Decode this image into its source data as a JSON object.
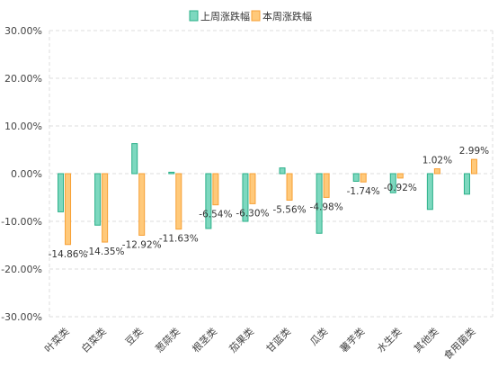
{
  "chart_data": {
    "type": "bar",
    "categories": [
      "叶菜类",
      "白菜类",
      "豆类",
      "葱蒜类",
      "根茎类",
      "茄果类",
      "甘蓝类",
      "瓜类",
      "薯芋类",
      "水生类",
      "其他类",
      "食用菌类"
    ],
    "series": [
      {
        "name": "上周涨跌幅",
        "values": [
          -8.0,
          -10.8,
          6.3,
          0.3,
          -11.5,
          -10.0,
          1.2,
          -12.5,
          -1.6,
          -4.0,
          -7.5,
          -4.3
        ],
        "color": "#7dd8bf",
        "stroke": "#2bb089"
      },
      {
        "name": "本周涨跌幅",
        "values": [
          -14.86,
          -14.35,
          -12.92,
          -11.63,
          -6.54,
          -6.3,
          -5.56,
          -4.98,
          -1.74,
          -0.92,
          1.02,
          2.99
        ],
        "labels": [
          "-14.86%",
          "-14.35%",
          "-12.92%",
          "-11.63%",
          "-6.54%",
          "-6.30%",
          "-5.56%",
          "-4.98%",
          "-1.74%",
          "-0.92%",
          "1.02%",
          "2.99%"
        ],
        "color": "#ffc97a",
        "stroke": "#f7a035"
      }
    ],
    "ylim": [
      -30,
      30
    ],
    "yticks": [
      "-30.00%",
      "-20.00%",
      "-10.00%",
      "0.00%",
      "10.00%",
      "20.00%",
      "30.00%"
    ],
    "ytick_values": [
      -30,
      -20,
      -10,
      0,
      10,
      20,
      30
    ],
    "grid": true,
    "legend_position": "top-center",
    "xlabel": "",
    "ylabel": "",
    "title": ""
  }
}
